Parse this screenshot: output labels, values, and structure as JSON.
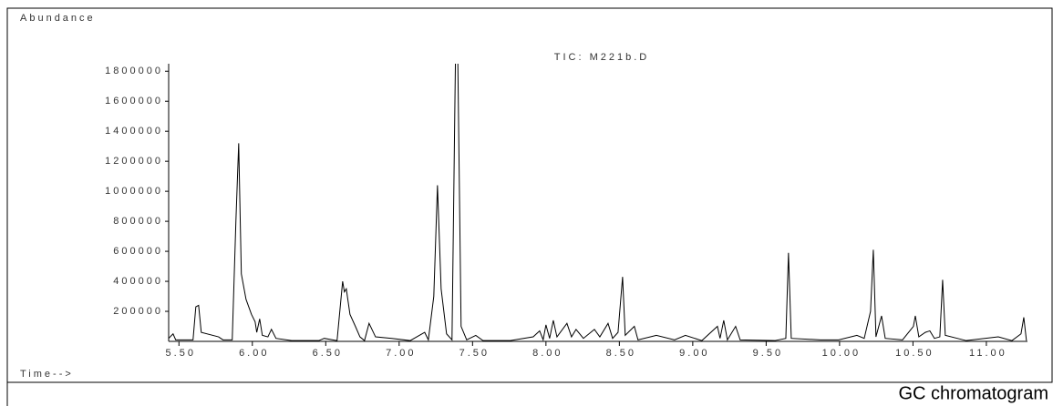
{
  "chart_data": {
    "type": "line",
    "title": "TIC: M221b.D",
    "y_label": "Abundance",
    "x_label": "Time-->",
    "caption": "GC chromatogram",
    "color": "#000000",
    "xlim": [
      5.43,
      11.28
    ],
    "ylim": [
      0,
      1850000
    ],
    "xticks": [
      {
        "value": 5.5,
        "label": "5.50"
      },
      {
        "value": 6.0,
        "label": "6.00"
      },
      {
        "value": 6.5,
        "label": "6.50"
      },
      {
        "value": 7.0,
        "label": "7.00"
      },
      {
        "value": 7.5,
        "label": "7.50"
      },
      {
        "value": 8.0,
        "label": "8.00"
      },
      {
        "value": 8.5,
        "label": "8.50"
      },
      {
        "value": 9.0,
        "label": "9.00"
      },
      {
        "value": 9.5,
        "label": "9.50"
      },
      {
        "value": 10.0,
        "label": "10.00"
      },
      {
        "value": 10.5,
        "label": "10.50"
      },
      {
        "value": 11.0,
        "label": "11.00"
      }
    ],
    "yticks": [
      200000,
      400000,
      600000,
      800000,
      1000000,
      1200000,
      1400000,
      1600000,
      1800000
    ],
    "x": [
      5.43,
      5.46,
      5.478,
      5.596,
      5.615,
      5.634,
      5.652,
      5.77,
      5.8,
      5.863,
      5.888,
      5.907,
      5.925,
      5.957,
      5.994,
      6.019,
      6.03,
      6.05,
      6.068,
      6.106,
      6.13,
      6.161,
      6.267,
      6.453,
      6.49,
      6.577,
      6.615,
      6.627,
      6.64,
      6.665,
      6.702,
      6.733,
      6.764,
      6.795,
      6.839,
      6.95,
      7.075,
      7.174,
      7.199,
      7.236,
      7.261,
      7.286,
      7.323,
      7.36,
      7.385,
      7.398,
      7.422,
      7.46,
      7.522,
      7.571,
      7.758,
      7.913,
      7.957,
      7.981,
      8.0,
      8.025,
      8.05,
      8.075,
      8.143,
      8.174,
      8.205,
      8.255,
      8.33,
      8.367,
      8.423,
      8.454,
      8.491,
      8.522,
      8.54,
      8.602,
      8.627,
      8.752,
      8.876,
      8.95,
      9.062,
      9.168,
      9.186,
      9.211,
      9.236,
      9.292,
      9.323,
      9.559,
      9.634,
      9.652,
      9.671,
      9.87,
      9.994,
      10.118,
      10.168,
      10.211,
      10.23,
      10.248,
      10.286,
      10.311,
      10.429,
      10.503,
      10.516,
      10.54,
      10.584,
      10.615,
      10.646,
      10.683,
      10.702,
      10.72,
      10.863,
      11.081,
      11.174,
      11.236,
      11.255,
      11.273
    ],
    "values": [
      20000,
      50000,
      10000,
      10000,
      230000,
      240000,
      60000,
      30000,
      10000,
      10000,
      800000,
      1320000,
      450000,
      280000,
      180000,
      130000,
      60000,
      150000,
      40000,
      30000,
      80000,
      20000,
      5000,
      5000,
      20000,
      5000,
      400000,
      330000,
      350000,
      180000,
      100000,
      30000,
      5000,
      120000,
      30000,
      20000,
      5000,
      60000,
      10000,
      300000,
      1040000,
      350000,
      50000,
      10000,
      2000000,
      2000000,
      100000,
      10000,
      40000,
      5000,
      5000,
      30000,
      70000,
      10000,
      110000,
      20000,
      140000,
      30000,
      120000,
      30000,
      80000,
      20000,
      80000,
      30000,
      120000,
      20000,
      60000,
      430000,
      40000,
      100000,
      10000,
      40000,
      10000,
      40000,
      5000,
      100000,
      20000,
      140000,
      10000,
      100000,
      10000,
      5000,
      20000,
      590000,
      20000,
      10000,
      10000,
      40000,
      20000,
      200000,
      610000,
      30000,
      170000,
      20000,
      10000,
      100000,
      170000,
      30000,
      60000,
      70000,
      20000,
      30000,
      410000,
      40000,
      5000,
      30000,
      5000,
      50000,
      160000,
      5000
    ]
  }
}
